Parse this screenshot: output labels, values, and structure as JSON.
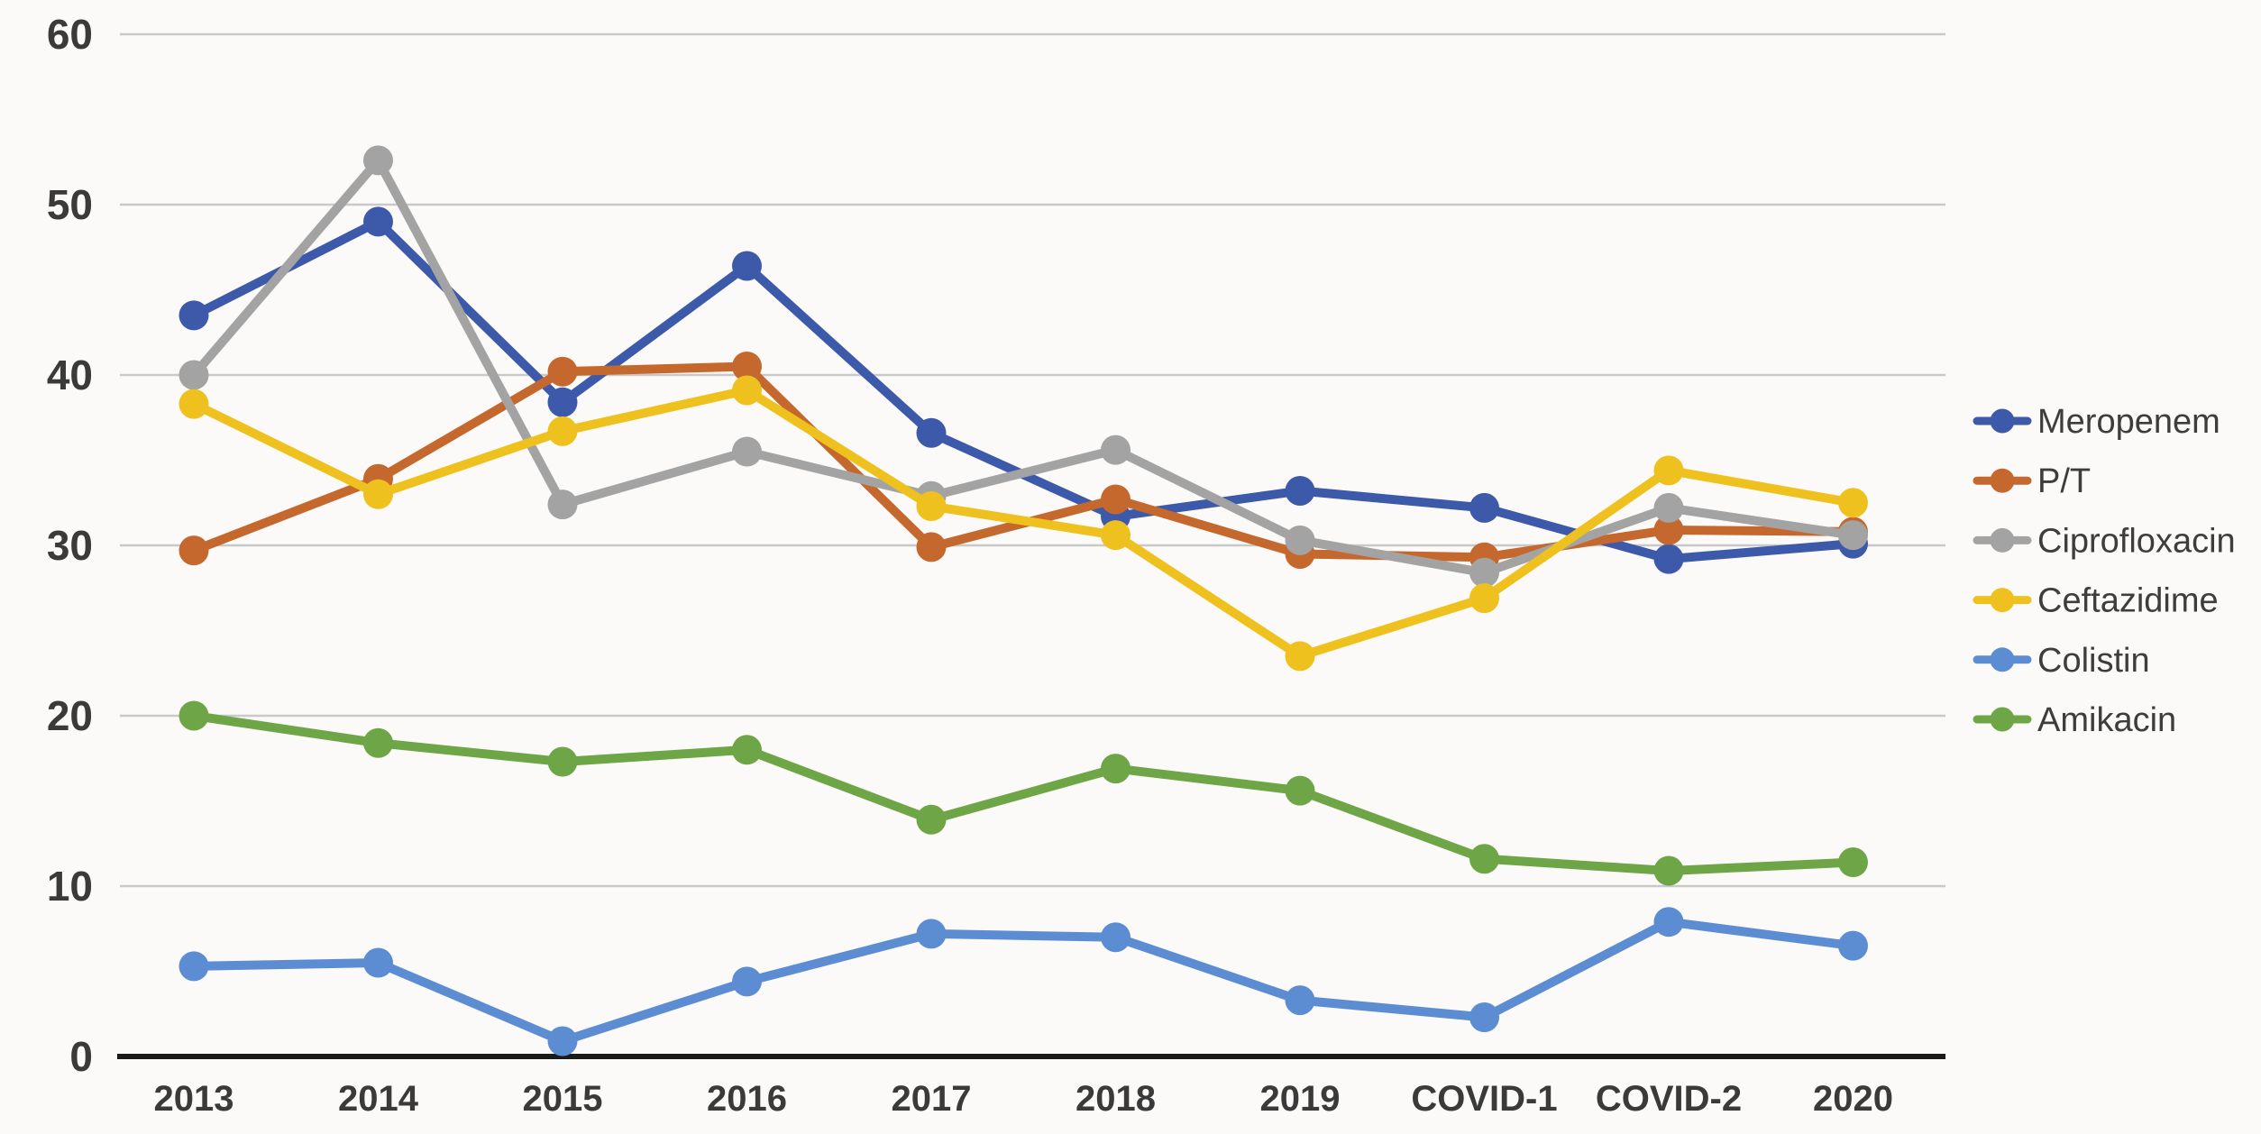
{
  "chart_data": {
    "type": "line",
    "title": "",
    "categories": [
      "2013",
      "2014",
      "2015",
      "2016",
      "2017",
      "2018",
      "2019",
      "COVID-1",
      "COVID-2",
      "2020"
    ],
    "series": [
      {
        "name": "Meropenem",
        "color": "#3d5aaa",
        "values": [
          43.5,
          49.0,
          38.4,
          46.4,
          36.6,
          31.7,
          33.2,
          32.2,
          29.2,
          30.1
        ]
      },
      {
        "name": "P/T",
        "color": "#c5682e",
        "values": [
          29.7,
          33.9,
          40.2,
          40.5,
          29.9,
          32.7,
          29.5,
          29.3,
          30.9,
          30.8
        ]
      },
      {
        "name": "Ciprofloxacin",
        "color": "#a3a3a3",
        "values": [
          40.0,
          52.6,
          32.4,
          35.5,
          32.9,
          35.6,
          30.3,
          28.4,
          32.2,
          30.6
        ]
      },
      {
        "name": "Ceftazidime",
        "color": "#efc11e",
        "values": [
          38.3,
          33.0,
          36.7,
          39.1,
          32.3,
          30.6,
          23.5,
          26.9,
          34.4,
          32.5
        ]
      },
      {
        "name": "Colistin",
        "color": "#5c8dd2",
        "values": [
          5.3,
          5.5,
          0.9,
          4.4,
          7.2,
          7.0,
          3.3,
          2.3,
          7.9,
          6.5
        ]
      },
      {
        "name": "Amikacin",
        "color": "#6ea647",
        "values": [
          20.0,
          18.4,
          17.3,
          18.0,
          13.9,
          16.9,
          15.6,
          11.6,
          10.9,
          11.4
        ]
      }
    ],
    "y_axis": {
      "min": 0,
      "max": 60,
      "step": 10,
      "ticks": [
        "0",
        "10",
        "20",
        "30",
        "40",
        "50",
        "60"
      ]
    },
    "x_axis_ticks": [
      "2013",
      "2014",
      "2015",
      "2016",
      "2017",
      "2018",
      "2019",
      "COVID-1",
      "COVID-2",
      "2020"
    ],
    "grid": true,
    "legend_position": "right"
  },
  "colors": {
    "background": "#fbfaf8",
    "gridline": "#c9c9c9",
    "axis_line": "#1a1a1a",
    "tick_text": "#3a3a3a"
  }
}
